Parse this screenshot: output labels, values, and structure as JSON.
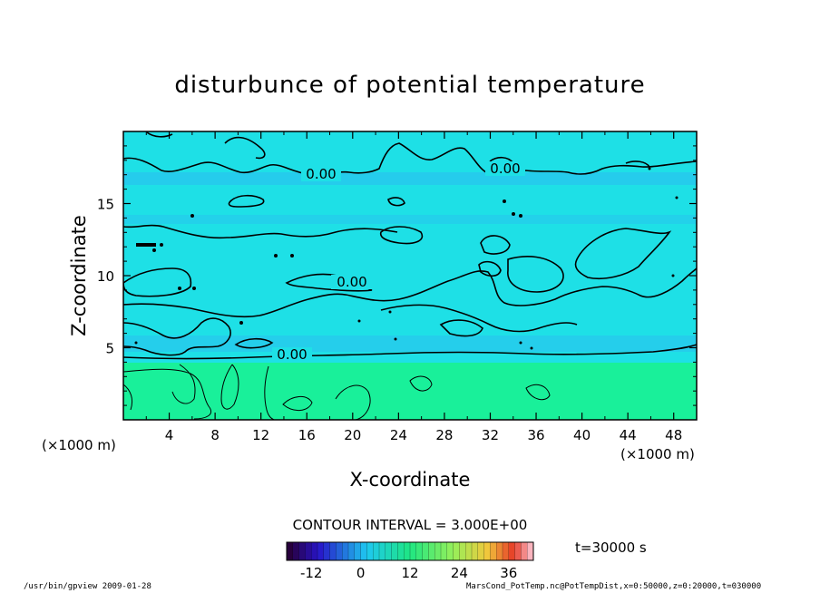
{
  "chart_data": {
    "type": "heatmap",
    "title": "disturbunce of potential temperature",
    "xlabel": "X-coordinate",
    "ylabel": "Z-coordinate",
    "x_unit_left": "(×1000 m)",
    "x_unit_right": "(×1000 m)",
    "xlim": [
      0,
      50
    ],
    "ylim": [
      0,
      20
    ],
    "x_ticks": [
      "4",
      "8",
      "12",
      "16",
      "20",
      "24",
      "28",
      "32",
      "36",
      "40",
      "44",
      "48"
    ],
    "y_ticks": [
      "5",
      "10",
      "15"
    ],
    "contour_labels": [
      "0.00",
      "0.00",
      "0.00",
      "0.00"
    ],
    "contour_interval": "CONTOUR INTERVAL = 3.000E+00",
    "time_label": "t=30000 s",
    "colorbar": {
      "ticks": [
        "-12",
        "0",
        "12",
        "24",
        "36"
      ],
      "range": [
        -18,
        42
      ]
    },
    "grid": false,
    "colors": {
      "upper_field": "#1ee0e6",
      "bands": "#2bbcf0",
      "lower_field": "#19f09a"
    }
  },
  "footer": {
    "left": "/usr/bin/gpview   2009-01-28",
    "right": "MarsCond_PotTemp.nc@PotTempDist,x=0:50000,z=0:20000,t=030000"
  }
}
